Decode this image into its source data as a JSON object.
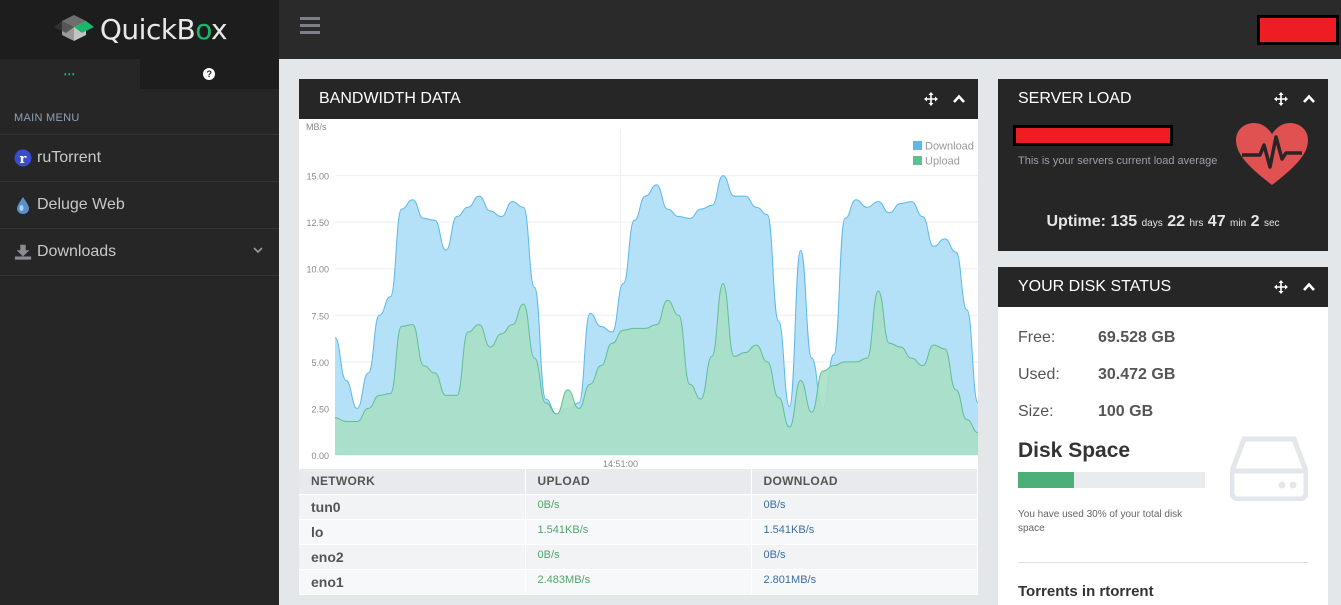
{
  "app": {
    "logo_text": "QuickBox",
    "accent": "#1bb76e"
  },
  "sidebar": {
    "tab_menu_icon": "⋯",
    "tab_help_icon": "help-icon",
    "menu_label": "MAIN MENU",
    "items": [
      {
        "label": "ruTorrent",
        "icon": "rutorrent-icon"
      },
      {
        "label": "Deluge Web",
        "icon": "deluge-icon"
      },
      {
        "label": "Downloads",
        "icon": "download-icon"
      }
    ]
  },
  "bandwidth": {
    "title": "BANDWIDTH DATA",
    "table": {
      "headers": [
        "NETWORK",
        "UPLOAD",
        "DOWNLOAD"
      ],
      "rows": [
        {
          "iface": "tun0",
          "up": "0B/s",
          "down": "0B/s"
        },
        {
          "iface": "lo",
          "up": "1.541KB/s",
          "down": "1.541KB/s"
        },
        {
          "iface": "eno2",
          "up": "0B/s",
          "down": "0B/s"
        },
        {
          "iface": "eno1",
          "up": "2.483MB/s",
          "down": "2.801MB/s"
        }
      ]
    }
  },
  "chart_data": {
    "type": "area",
    "ylabel": "MB/s",
    "ylim": [
      0,
      17.5
    ],
    "yticks": [
      "0.00",
      "2.50",
      "5.00",
      "7.50",
      "10.00",
      "12.50",
      "15.00"
    ],
    "x_tick_label": "14:51:00",
    "legend_position": "top-right",
    "series": [
      {
        "name": "Download",
        "color": "#b4e0f8",
        "stroke": "#5bb8e8",
        "values": [
          6.3,
          4.0,
          2.5,
          4.4,
          7.5,
          8.5,
          13.2,
          13.7,
          12.7,
          12.6,
          11.0,
          12.8,
          13.3,
          13.9,
          13.1,
          12.8,
          13.6,
          13.3,
          9.0,
          3.0,
          2.2,
          2.5,
          2.8,
          7.6,
          6.9,
          6.6,
          9.2,
          12.6,
          13.9,
          14.5,
          13.2,
          12.8,
          12.7,
          13.2,
          13.4,
          15.0,
          13.9,
          13.9,
          13.3,
          12.9,
          7.2,
          2.6,
          11.0,
          5.2,
          2.5,
          5.4,
          12.7,
          13.7,
          13.3,
          13.6,
          13.0,
          13.5,
          13.6,
          12.8,
          11.2,
          11.6,
          10.9,
          7.8,
          2.8
        ]
      },
      {
        "name": "Upload",
        "color": "#a8dfc7",
        "stroke": "#5fbf92",
        "values": [
          2.0,
          1.8,
          1.8,
          2.5,
          3.2,
          3.3,
          6.9,
          7.0,
          4.8,
          4.4,
          3.2,
          3.2,
          6.6,
          7.0,
          5.8,
          6.5,
          7.0,
          8.1,
          5.2,
          2.8,
          2.2,
          3.5,
          2.5,
          3.8,
          4.8,
          6.0,
          6.7,
          6.8,
          6.8,
          7.0,
          8.3,
          7.5,
          3.8,
          3.0,
          5.3,
          9.2,
          5.3,
          5.5,
          5.9,
          5.0,
          3.1,
          1.5,
          4.0,
          2.3,
          4.5,
          4.8,
          5.0,
          5.0,
          5.2,
          8.8,
          6.0,
          5.8,
          5.2,
          4.8,
          5.9,
          5.7,
          3.5,
          1.9,
          1.2
        ]
      }
    ]
  },
  "server_load": {
    "title": "SERVER LOAD",
    "desc": "This is your servers current load average",
    "uptime_label": "Uptime:",
    "days": "135",
    "days_unit": "days",
    "hrs": "22",
    "hrs_unit": "hrs",
    "min": "47",
    "min_unit": "min",
    "sec": "2",
    "sec_unit": "sec"
  },
  "disk": {
    "title": "YOUR DISK STATUS",
    "free_label": "Free:",
    "free_value": "69.528 GB",
    "used_label": "Used:",
    "used_value": "30.472 GB",
    "size_label": "Size:",
    "size_value": "100 GB",
    "space_title": "Disk Space",
    "used_percent": 30,
    "note": "You have used 30% of your total disk space",
    "torrents_title": "Torrents in rtorrent"
  }
}
